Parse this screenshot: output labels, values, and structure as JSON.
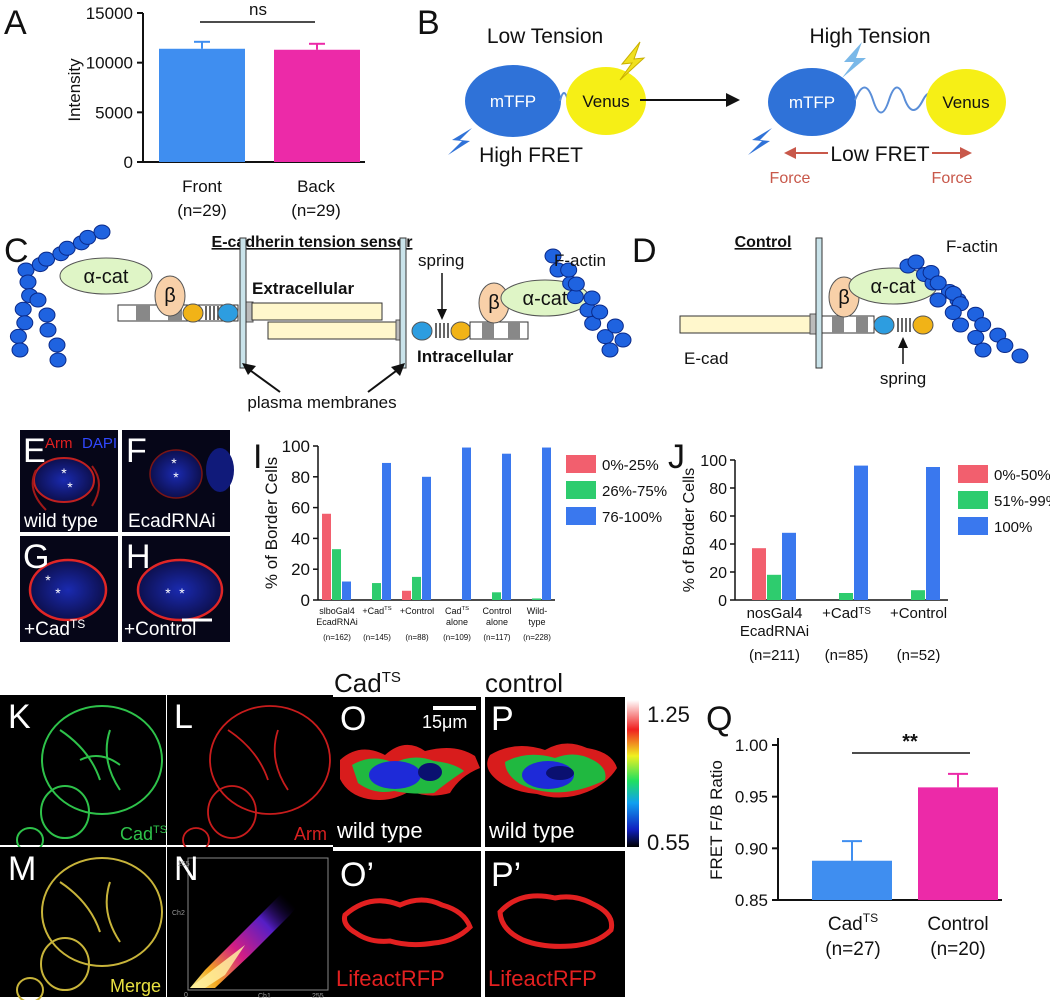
{
  "panel_letters": [
    "A",
    "B",
    "C",
    "D",
    "E",
    "F",
    "G",
    "H",
    "I",
    "J",
    "K",
    "L",
    "M",
    "N",
    "O",
    "P",
    "Q",
    "O’",
    "P’"
  ],
  "panelA": {
    "ylabel": "Intensity",
    "yticks": [
      "0",
      "5000",
      "10000",
      "15000"
    ],
    "sig": "ns",
    "bars": [
      {
        "label": "Front",
        "n": "(n=29)",
        "value": 11400,
        "err": 700,
        "color": "#3f8ef0"
      },
      {
        "label": "Back",
        "n": "(n=29)",
        "value": 11300,
        "err": 600,
        "color": "#ec2aa8"
      }
    ]
  },
  "panelB": {
    "low_tension": "Low Tension",
    "high_tension": "High Tension",
    "mtfp": "mTFP",
    "venus": "Venus",
    "high_fret": "High FRET",
    "low_fret": "Low FRET",
    "force": "Force"
  },
  "panelC": {
    "title": "E-cadherin tension sensor",
    "alpha_cat": "α-cat",
    "beta": "β",
    "extracellular": "Extracellular",
    "intracellular": "Intracellular",
    "spring": "spring",
    "f_actin": "F-actin",
    "plasma_membranes": "plasma membranes"
  },
  "panelD": {
    "title": "Control",
    "alpha_cat": "α-cat",
    "beta": "β",
    "f_actin": "F-actin",
    "ecad": "E-cad",
    "spring": "spring"
  },
  "micro_EH": {
    "arm": "Arm",
    "dapi": "DAPI",
    "E": "wild type",
    "F": "EcadRNAi",
    "G": "+Cad",
    "G_sup": "TS",
    "H": "+Control"
  },
  "panelI": {
    "ylabel": "% of Border Cells",
    "yticks": [
      "0",
      "20",
      "40",
      "60",
      "80",
      "100"
    ],
    "legend": [
      "0%-25%",
      "26%-75%",
      "76-100%"
    ],
    "colors": [
      "#f25f6e",
      "#2ecc6e",
      "#3a78ee"
    ],
    "groups": [
      {
        "label": [
          "slboGal4",
          "EcadRNAi"
        ],
        "n": "(n=162)",
        "values": [
          56,
          33,
          12
        ]
      },
      {
        "label": [
          "+Cad",
          ""
        ],
        "sup": "TS",
        "n": "(n=145)",
        "values": [
          0,
          11,
          89
        ]
      },
      {
        "label": [
          "+Control",
          ""
        ],
        "n": "(n=88)",
        "values": [
          6,
          15,
          80
        ]
      },
      {
        "label": [
          "Cad",
          "alone"
        ],
        "sup": "TS",
        "n": "(n=109)",
        "values": [
          0,
          0,
          99
        ]
      },
      {
        "label": [
          "Control",
          "alone"
        ],
        "n": "(n=117)",
        "values": [
          0,
          5,
          95
        ]
      },
      {
        "label": [
          "Wild-",
          "type"
        ],
        "n": "(n=228)",
        "values": [
          0,
          1,
          99
        ]
      }
    ]
  },
  "panelJ": {
    "ylabel": "% of Border Cells",
    "yticks": [
      "0",
      "20",
      "40",
      "60",
      "80",
      "100"
    ],
    "legend": [
      "0%-50%",
      "51%-99%",
      "100%"
    ],
    "colors": [
      "#f25f6e",
      "#2ecc6e",
      "#3a78ee"
    ],
    "groups": [
      {
        "label": [
          "nosGal4",
          "EcadRNAi"
        ],
        "n": "(n=211)",
        "values": [
          37,
          18,
          48
        ]
      },
      {
        "label": [
          "+Cad",
          ""
        ],
        "sup": "TS",
        "n": "(n=85)",
        "values": [
          0,
          5,
          96
        ]
      },
      {
        "label": [
          "+Control",
          ""
        ],
        "n": "(n=52)",
        "values": [
          0,
          7,
          95
        ]
      }
    ]
  },
  "micro_KN": {
    "K": "Cad",
    "K_sup": "TS",
    "L": "Arm",
    "M": "Merge",
    "N_y": "Ch2",
    "N_x": "Ch1",
    "N_max": "255",
    "N_min": "0"
  },
  "micro_OP": {
    "O_head": "Cad",
    "O_head_sup": "TS",
    "P_head": "control",
    "scale": "15μm",
    "wild_type": "wild type",
    "lifeact": "LifeactRFP",
    "cbar_max": "1.25",
    "cbar_min": "0.55"
  },
  "panelQ": {
    "ylabel": "FRET F/B Ratio",
    "yticks": [
      "0.85",
      "0.90",
      "0.95",
      "1.00"
    ],
    "sig": "**",
    "bars": [
      {
        "label": "Cad",
        "sup": "TS",
        "n": "(n=27)",
        "value": 0.888,
        "err": 0.019,
        "color": "#3f8ef0"
      },
      {
        "label": "Control",
        "n": "(n=20)",
        "value": 0.959,
        "err": 0.013,
        "color": "#ec2aa8"
      }
    ]
  },
  "chart_data": [
    {
      "type": "bar",
      "panel": "A",
      "categories": [
        "Front (n=29)",
        "Back (n=29)"
      ],
      "values": [
        11400,
        11300
      ],
      "errors": [
        700,
        600
      ],
      "ylabel": "Intensity",
      "ylim": [
        0,
        15000
      ],
      "annotation": "ns"
    },
    {
      "type": "bar",
      "panel": "I",
      "categories": [
        "slboGal4 EcadRNAi",
        "+CadTS",
        "+Control",
        "CadTS alone",
        "Control alone",
        "Wild-type"
      ],
      "series": [
        {
          "name": "0%-25%",
          "values": [
            56,
            0,
            6,
            0,
            0,
            0
          ]
        },
        {
          "name": "26%-75%",
          "values": [
            33,
            11,
            15,
            0,
            5,
            1
          ]
        },
        {
          "name": "76-100%",
          "values": [
            12,
            89,
            80,
            99,
            95,
            99
          ]
        }
      ],
      "ylabel": "% of Border Cells",
      "ylim": [
        0,
        100
      ],
      "legend": "top-right"
    },
    {
      "type": "bar",
      "panel": "J",
      "categories": [
        "nosGal4 EcadRNAi",
        "+CadTS",
        "+Control"
      ],
      "series": [
        {
          "name": "0%-50%",
          "values": [
            37,
            0,
            0
          ]
        },
        {
          "name": "51%-99%",
          "values": [
            18,
            5,
            7
          ]
        },
        {
          "name": "100%",
          "values": [
            48,
            96,
            95
          ]
        }
      ],
      "ylabel": "% of Border Cells",
      "ylim": [
        0,
        100
      ],
      "legend": "top-right"
    },
    {
      "type": "bar",
      "panel": "Q",
      "categories": [
        "CadTS (n=27)",
        "Control (n=20)"
      ],
      "values": [
        0.888,
        0.959
      ],
      "errors": [
        0.019,
        0.013
      ],
      "ylabel": "FRET F/B Ratio",
      "ylim": [
        0.85,
        1.0
      ],
      "annotation": "**"
    }
  ]
}
